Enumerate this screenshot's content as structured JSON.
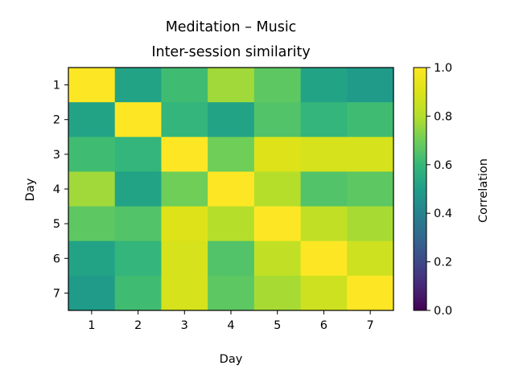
{
  "chart_data": {
    "type": "heatmap",
    "title": [
      "Meditation – Music",
      "Inter-session similarity"
    ],
    "xlabel": "Day",
    "ylabel": "Day",
    "x": [
      "1",
      "2",
      "3",
      "4",
      "5",
      "6",
      "7"
    ],
    "y": [
      "1",
      "2",
      "3",
      "4",
      "5",
      "6",
      "7"
    ],
    "values": [
      [
        1.0,
        0.52,
        0.62,
        0.77,
        0.67,
        0.52,
        0.49
      ],
      [
        0.52,
        1.0,
        0.59,
        0.52,
        0.65,
        0.59,
        0.62
      ],
      [
        0.62,
        0.59,
        1.0,
        0.7,
        0.9,
        0.88,
        0.88
      ],
      [
        0.77,
        0.52,
        0.7,
        1.0,
        0.8,
        0.65,
        0.67
      ],
      [
        0.67,
        0.65,
        0.9,
        0.8,
        1.0,
        0.83,
        0.78
      ],
      [
        0.52,
        0.59,
        0.88,
        0.65,
        0.83,
        1.0,
        0.86
      ],
      [
        0.49,
        0.62,
        0.88,
        0.67,
        0.78,
        0.86,
        1.0
      ]
    ],
    "colormap": "viridis",
    "colorbar": {
      "label": "Correlation",
      "range": [
        0.0,
        1.0
      ],
      "ticks": [
        "0.0",
        "0.2",
        "0.4",
        "0.6",
        "0.8",
        "1.0"
      ]
    }
  }
}
